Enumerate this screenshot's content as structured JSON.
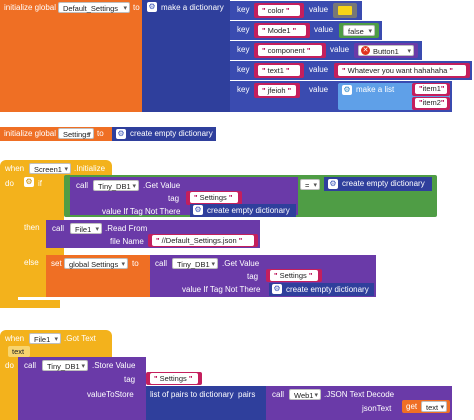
{
  "block1": {
    "init_label": "initialize global",
    "var_name": "Default_Settings",
    "to": "to",
    "make_dict": "make a dictionary",
    "pairs": [
      {
        "key_label": "key",
        "key": "color",
        "value_label": "value",
        "value_kind": "color",
        "value_color": "#f7d417"
      },
      {
        "key_label": "key",
        "key": "Mode1",
        "value_label": "value",
        "value_kind": "text",
        "value": "false"
      },
      {
        "key_label": "key",
        "key": "component",
        "value_label": "value",
        "value_kind": "component",
        "value": "Button1"
      },
      {
        "key_label": "key",
        "key": "text1",
        "value_label": "value",
        "value_kind": "string",
        "value": "Whatever you want hahahaha"
      },
      {
        "key_label": "key",
        "key": "jfeioh",
        "value_label": "value",
        "value_kind": "list"
      }
    ],
    "make_list": "make a list",
    "list_items": [
      "item1",
      "item2"
    ]
  },
  "block2": {
    "init_label": "initialize global",
    "var_name": "Settings",
    "to": "to",
    "create_empty": "create empty dictionary"
  },
  "block3": {
    "when": "when",
    "component": "Screen1",
    "event": ".Initialize",
    "do": "do",
    "if": "if",
    "call": "call",
    "db": "Tiny_DB1",
    "get_value": ".Get Value",
    "tag": "tag",
    "tag_value": "Settings",
    "value_if": "value If Tag Not There",
    "create_empty": "create empty dictionary",
    "equals": "=",
    "then": "then",
    "file": "File1",
    "read_from": ".Read From",
    "file_name_label": "file Name",
    "file_name": "//Default_Settings.json",
    "else": "else",
    "set": "set",
    "set_var": "global Settings",
    "to": "to"
  },
  "block4": {
    "when": "when",
    "component": "File1",
    "event": ".Got Text",
    "param": "text",
    "do": "do",
    "call": "call",
    "db": "Tiny_DB1",
    "store_value": ".Store Value",
    "tag": "tag",
    "tag_value": "Settings",
    "value_to_store": "valueToStore",
    "list_to_dict": "list of pairs to dictionary",
    "pairs": "pairs",
    "web": "Web1",
    "json_decode": ".JSON Text Decode",
    "json_text": "jsonText",
    "get": "get",
    "get_var": "text"
  },
  "colors": {
    "variable": "#ef6f24",
    "dictionary": "#2f3f9c",
    "text": "#c41f5d",
    "component": "#6a3aa8",
    "control": "#f3b21c",
    "logic": "#4f9d45",
    "list": "#5fa0e8"
  }
}
